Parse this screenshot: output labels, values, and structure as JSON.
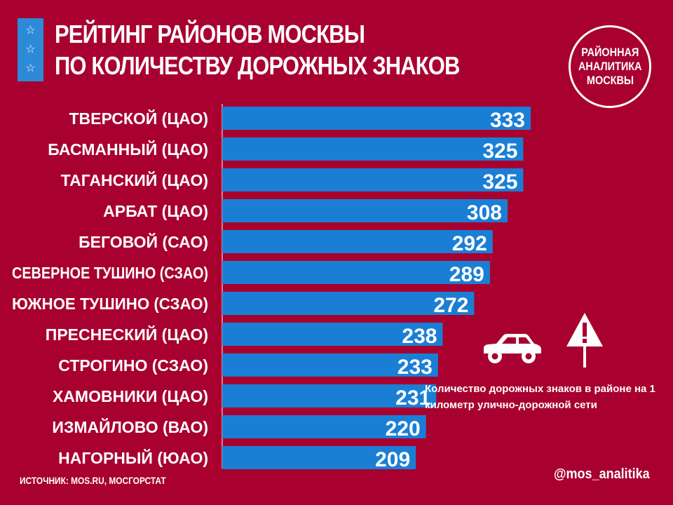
{
  "header": {
    "title_line1": "РЕЙТИНГ РАЙОНОВ МОСКВЫ",
    "title_line2": "ПО КОЛИЧЕСТВУ ДОРОЖНЫХ ЗНАКОВ",
    "star_icon": "☆"
  },
  "logo": {
    "line1": "РАЙОННАЯ",
    "line2": "АНАЛИТИКА",
    "line3": "МОСКВЫ"
  },
  "colors": {
    "background": "#a8002f",
    "bar": "#1a7fd4",
    "text": "#ffffff"
  },
  "chart_data": {
    "type": "bar",
    "orientation": "horizontal",
    "categories": [
      "ТВЕРСКОЙ (ЦАО)",
      "БАСМАННЫЙ (ЦАО)",
      "ТАГАНСКИЙ (ЦАО)",
      "АРБАТ (ЦАО)",
      "БЕГОВОЙ (САО)",
      "СЕВЕРНОЕ ТУШИНО (СЗАО)",
      "ЮЖНОЕ ТУШИНО (СЗАО)",
      "ПРЕСНЕСКИЙ (ЦАО)",
      "СТРОГИНО (СЗАО)",
      "ХАМОВНИКИ (ЦАО)",
      "ИЗМАЙЛОВО (ВАО)",
      "НАГОРНЫЙ (ЮАО)"
    ],
    "values": [
      333,
      325,
      325,
      308,
      292,
      289,
      272,
      238,
      233,
      231,
      220,
      209
    ],
    "xlim": [
      0,
      333
    ],
    "grid": false,
    "legend_text": "Количество дорожных знаков в районе на 1 километр улично-дорожной сети",
    "legend_icons": [
      "car-icon",
      "warning-sign-icon"
    ]
  },
  "footer": {
    "source": "ИСТОЧНИК: MOS.RU, МОСГОРСТАТ",
    "handle": "@mos_analitika"
  }
}
